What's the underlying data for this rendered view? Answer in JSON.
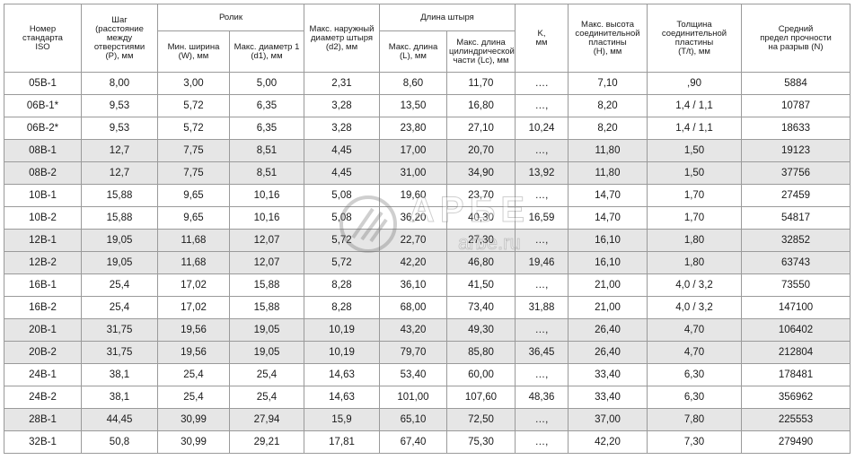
{
  "table": {
    "header": {
      "iso": "Номер\nстандарта\nISO",
      "pitch": "Шаг\n(расстояние\nмежду\nотверстиями\n(P), мм",
      "roller": {
        "title": "Ролик",
        "min_width": "Мин. ширина\n(W), мм",
        "max_d1": "Макс. диаметр 1\n(d1), мм"
      },
      "pin_d2": "Макс. наружный\nдиаметр штыря\n(d2), мм",
      "pin_length": {
        "title": "Длина штыря",
        "max_l": "Макс. длина\n(L), мм",
        "max_lc": "Макс. длина\nцилиндрической\nчасти (Lc), мм"
      },
      "k": "K,\nмм",
      "plate_h": "Макс. высота\nсоединительной\nпластины\n(H), мм",
      "plate_t": "Толщина\nсоединительной\nпластины\n(T/t), мм",
      "strength": "Средний\nпредел прочности\nна разрыв (N)"
    },
    "rows": [
      [
        "05B-1",
        "8,00",
        "3,00",
        "5,00",
        "2,31",
        "8,60",
        "11,70",
        "….",
        "7,10",
        ",90",
        "5884"
      ],
      [
        "06B-1*",
        "9,53",
        "5,72",
        "6,35",
        "3,28",
        "13,50",
        "16,80",
        "…,",
        "8,20",
        "1,4 / 1,1",
        "10787"
      ],
      [
        "06B-2*",
        "9,53",
        "5,72",
        "6,35",
        "3,28",
        "23,80",
        "27,10",
        "10,24",
        "8,20",
        "1,4 / 1,1",
        "18633"
      ],
      [
        "08B-1",
        "12,7",
        "7,75",
        "8,51",
        "4,45",
        "17,00",
        "20,70",
        "…,",
        "11,80",
        "1,50",
        "19123"
      ],
      [
        "08B-2",
        "12,7",
        "7,75",
        "8,51",
        "4,45",
        "31,00",
        "34,90",
        "13,92",
        "11,80",
        "1,50",
        "37756"
      ],
      [
        "10B-1",
        "15,88",
        "9,65",
        "10,16",
        "5,08",
        "19,60",
        "23,70",
        "…,",
        "14,70",
        "1,70",
        "27459"
      ],
      [
        "10B-2",
        "15,88",
        "9,65",
        "10,16",
        "5,08",
        "36,20",
        "40,30",
        "16,59",
        "14,70",
        "1,70",
        "54817"
      ],
      [
        "12B-1",
        "19,05",
        "11,68",
        "12,07",
        "5,72",
        "22,70",
        "27,30",
        "…,",
        "16,10",
        "1,80",
        "32852"
      ],
      [
        "12B-2",
        "19,05",
        "11,68",
        "12,07",
        "5,72",
        "42,20",
        "46,80",
        "19,46",
        "16,10",
        "1,80",
        "63743"
      ],
      [
        "16B-1",
        "25,4",
        "17,02",
        "15,88",
        "8,28",
        "36,10",
        "41,50",
        "…,",
        "21,00",
        "4,0 / 3,2",
        "73550"
      ],
      [
        "16B-2",
        "25,4",
        "17,02",
        "15,88",
        "8,28",
        "68,00",
        "73,40",
        "31,88",
        "21,00",
        "4,0 / 3,2",
        "147100"
      ],
      [
        "20B-1",
        "31,75",
        "19,56",
        "19,05",
        "10,19",
        "43,20",
        "49,30",
        "…,",
        "26,40",
        "4,70",
        "106402"
      ],
      [
        "20B-2",
        "31,75",
        "19,56",
        "19,05",
        "10,19",
        "79,70",
        "85,80",
        "36,45",
        "26,40",
        "4,70",
        "212804"
      ],
      [
        "24B-1",
        "38,1",
        "25,4",
        "25,4",
        "14,63",
        "53,40",
        "60,00",
        "…,",
        "33,40",
        "6,30",
        "178481"
      ],
      [
        "24B-2",
        "38,1",
        "25,4",
        "25,4",
        "14,63",
        "101,00",
        "107,60",
        "48,36",
        "33,40",
        "6,30",
        "356962"
      ],
      [
        "28B-1",
        "44,45",
        "30,99",
        "27,94",
        "15,9",
        "65,10",
        "72,50",
        "…,",
        "37,00",
        "7,80",
        "225553"
      ],
      [
        "32B-1",
        "50,8",
        "30,99",
        "29,21",
        "17,81",
        "67,40",
        "75,30",
        "…,",
        "42,20",
        "7,30",
        "279490"
      ]
    ]
  },
  "watermark": {
    "logo": "АРБЕ",
    "url": "arbe.ru"
  }
}
